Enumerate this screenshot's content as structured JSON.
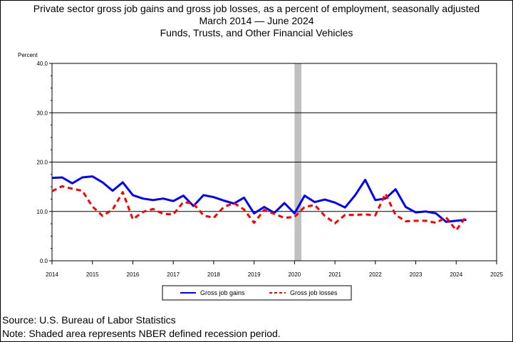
{
  "header": {
    "title_line1": "Private sector gross job gains and gross job losses, as a percent of employment, seasonally adjusted",
    "title_line2": "March 2014 — June 2024",
    "title_line3": "Funds, Trusts, and Other Financial Vehicles"
  },
  "footer": {
    "source": "Source: U.S. Bureau of Labor Statistics",
    "note": "Note: Shaded area represents NBER defined recession period."
  },
  "chart_data": {
    "type": "line",
    "ylabel": "Percent",
    "ylim": [
      0,
      40
    ],
    "yticks": [
      "0.0",
      "10.0",
      "20.0",
      "30.0",
      "40.0"
    ],
    "xlim": [
      2014,
      2025
    ],
    "xticks": [
      "2014",
      "2015",
      "2016",
      "2017",
      "2018",
      "2019",
      "2020",
      "2021",
      "2022",
      "2023",
      "2024",
      "2025"
    ],
    "grid": "horizontal",
    "recession": {
      "start": 2020.0,
      "end": 2020.17,
      "color": "#c0c0c0"
    },
    "x": [
      2014.0,
      2014.25,
      2014.5,
      2014.75,
      2015.0,
      2015.25,
      2015.5,
      2015.75,
      2016.0,
      2016.25,
      2016.5,
      2016.75,
      2017.0,
      2017.25,
      2017.5,
      2017.75,
      2018.0,
      2018.25,
      2018.5,
      2018.75,
      2019.0,
      2019.25,
      2019.5,
      2019.75,
      2020.0,
      2020.25,
      2020.5,
      2020.75,
      2021.0,
      2021.25,
      2021.5,
      2021.75,
      2022.0,
      2022.25,
      2022.5,
      2022.75,
      2023.0,
      2023.25,
      2023.5,
      2023.75,
      2024.0,
      2024.25
    ],
    "series": [
      {
        "name": "Gross job gains",
        "color": "#0000ff",
        "style": "solid",
        "values": [
          16.8,
          16.9,
          15.7,
          16.9,
          17.1,
          15.9,
          14.2,
          15.9,
          13.3,
          12.6,
          12.3,
          12.6,
          12.1,
          13.2,
          11.1,
          13.3,
          12.9,
          12.2,
          11.6,
          12.8,
          9.6,
          10.9,
          9.7,
          11.7,
          9.6,
          13.2,
          11.9,
          12.4,
          11.8,
          10.8,
          13.3,
          16.4,
          12.3,
          12.6,
          14.5,
          10.9,
          9.8,
          10.0,
          9.6,
          7.9,
          8.1,
          8.3
        ]
      },
      {
        "name": "Gross job losses",
        "color": "#ff0000",
        "style": "dashed",
        "values": [
          14.1,
          15.1,
          14.6,
          14.2,
          11.0,
          9.1,
          10.4,
          13.9,
          8.4,
          9.9,
          10.5,
          9.5,
          9.4,
          11.9,
          11.6,
          9.2,
          8.7,
          10.9,
          11.7,
          10.4,
          7.7,
          10.3,
          9.5,
          8.7,
          8.9,
          10.9,
          11.3,
          9.1,
          7.6,
          9.3,
          9.3,
          9.4,
          9.2,
          13.6,
          9.3,
          8.0,
          8.1,
          8.1,
          7.7,
          8.8,
          6.2,
          9.0
        ]
      }
    ],
    "legend_position": "bottom"
  }
}
